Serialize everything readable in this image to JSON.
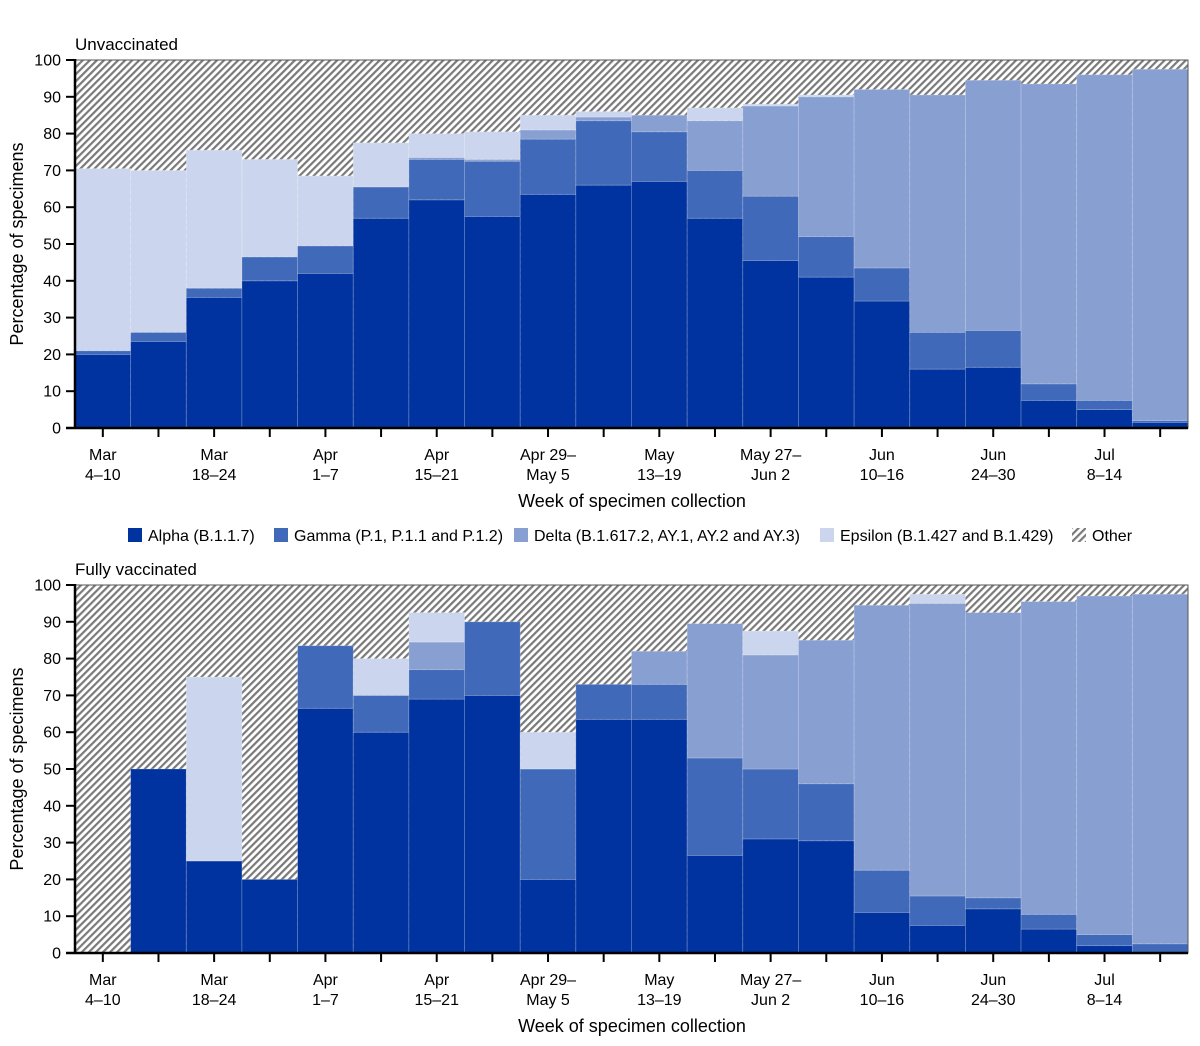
{
  "colors": {
    "alpha": "#0033a0",
    "gamma": "#4169b9",
    "delta": "#889fd2",
    "epsilon": "#cbd6ee",
    "other_hatch": "#7a7a7a"
  },
  "legend": {
    "placement": "between-panels",
    "items": [
      {
        "key": "alpha",
        "label": "Alpha (B.1.1.7)"
      },
      {
        "key": "gamma",
        "label": "Gamma (P.1, P.1.1 and P.1.2)"
      },
      {
        "key": "delta",
        "label": "Delta (B.1.617.2, AY.1, AY.2 and AY.3)"
      },
      {
        "key": "epsilon",
        "label": "Epsilon (B.1.427 and B.1.429)"
      },
      {
        "key": "other",
        "label": "Other"
      }
    ]
  },
  "chart_data": [
    {
      "type": "bar",
      "stacked": true,
      "title": "Unvaccinated",
      "xlabel": "Week of specimen collection",
      "ylabel": "Percentage of specimens",
      "ylim": [
        0,
        100
      ],
      "yticks": [
        0,
        10,
        20,
        30,
        40,
        50,
        60,
        70,
        80,
        90,
        100
      ],
      "categories": [
        [
          "Mar",
          "4–10"
        ],
        [
          "",
          ""
        ],
        [
          "Mar",
          "18–24"
        ],
        [
          "",
          ""
        ],
        [
          "Apr",
          "1–7"
        ],
        [
          "",
          ""
        ],
        [
          "Apr",
          "15–21"
        ],
        [
          "",
          ""
        ],
        [
          "Apr 29–",
          "May 5"
        ],
        [
          "",
          ""
        ],
        [
          "May",
          "13–19"
        ],
        [
          "",
          ""
        ],
        [
          "May 27–",
          "Jun 2"
        ],
        [
          "",
          ""
        ],
        [
          "Jun",
          "10–16"
        ],
        [
          "",
          ""
        ],
        [
          "Jun",
          "24–30"
        ],
        [
          "",
          ""
        ],
        [
          "Jul",
          "8–14"
        ],
        [
          "",
          ""
        ]
      ],
      "series": [
        {
          "name": "Alpha (B.1.1.7)",
          "key": "alpha",
          "values": [
            20,
            23.5,
            35.5,
            40,
            42,
            57,
            62,
            57.5,
            63.5,
            66,
            67,
            57,
            45.5,
            41,
            34.5,
            16,
            16.5,
            7.5,
            5,
            1.5
          ]
        },
        {
          "name": "Gamma (P.1, P.1.1 and P.1.2)",
          "key": "gamma",
          "values": [
            1,
            2.5,
            2.5,
            6.5,
            7.5,
            8.5,
            11,
            15,
            15,
            17.5,
            13.5,
            13,
            17.5,
            11,
            9,
            10,
            10,
            4.5,
            2.5,
            0.5
          ]
        },
        {
          "name": "Delta (B.1.617.2, AY.1, AY.2 and AY.3)",
          "key": "delta",
          "values": [
            0,
            0,
            0,
            0,
            0,
            0,
            0.5,
            0.5,
            2.5,
            1,
            4.5,
            13.5,
            24.5,
            38,
            48.5,
            64.5,
            68,
            81.5,
            88.5,
            95.5
          ]
        },
        {
          "name": "Epsilon (B.1.427 and B.1.429)",
          "key": "epsilon",
          "values": [
            49.5,
            44,
            37.5,
            26.5,
            19,
            12,
            6.5,
            7.5,
            4,
            1.5,
            0,
            3.5,
            0.5,
            0.5,
            0,
            0,
            0,
            0,
            0,
            0
          ]
        }
      ]
    },
    {
      "type": "bar",
      "stacked": true,
      "title": "Fully vaccinated",
      "xlabel": "Week of specimen collection",
      "ylabel": "Percentage of specimens",
      "ylim": [
        0,
        100
      ],
      "yticks": [
        0,
        10,
        20,
        30,
        40,
        50,
        60,
        70,
        80,
        90,
        100
      ],
      "categories": [
        [
          "Mar",
          "4–10"
        ],
        [
          "",
          ""
        ],
        [
          "Mar",
          "18–24"
        ],
        [
          "",
          ""
        ],
        [
          "Apr",
          "1–7"
        ],
        [
          "",
          ""
        ],
        [
          "Apr",
          "15–21"
        ],
        [
          "",
          ""
        ],
        [
          "Apr 29–",
          "May 5"
        ],
        [
          "",
          ""
        ],
        [
          "May",
          "13–19"
        ],
        [
          "",
          ""
        ],
        [
          "May 27–",
          "Jun 2"
        ],
        [
          "",
          ""
        ],
        [
          "Jun",
          "10–16"
        ],
        [
          "",
          ""
        ],
        [
          "Jun",
          "24–30"
        ],
        [
          "",
          ""
        ],
        [
          "Jul",
          "8–14"
        ],
        [
          "",
          ""
        ]
      ],
      "series": [
        {
          "name": "Alpha (B.1.1.7)",
          "key": "alpha",
          "values": [
            0,
            50,
            25,
            20,
            66.5,
            60,
            69,
            70,
            20,
            63.5,
            63.5,
            26.5,
            31,
            30.5,
            11,
            7.5,
            12,
            6.5,
            2,
            0
          ]
        },
        {
          "name": "Gamma (P.1, P.1.1 and P.1.2)",
          "key": "gamma",
          "values": [
            0,
            0,
            0,
            0,
            17,
            10,
            8,
            20,
            30,
            9.5,
            9.5,
            26.5,
            19,
            15.5,
            11.5,
            8,
            3,
            4,
            3,
            2.5
          ]
        },
        {
          "name": "Delta (B.1.617.2, AY.1, AY.2 and AY.3)",
          "key": "delta",
          "values": [
            0,
            0,
            0,
            0,
            0,
            0,
            7.5,
            0,
            0,
            0,
            9,
            36.5,
            31,
            39,
            72,
            79.5,
            77.5,
            85,
            92,
            95
          ]
        },
        {
          "name": "Epsilon (B.1.427 and B.1.429)",
          "key": "epsilon",
          "values": [
            0,
            0,
            50,
            0,
            0,
            10,
            8,
            0,
            10,
            0,
            0,
            0,
            6.5,
            0,
            0,
            2.5,
            0,
            0,
            0,
            0
          ]
        }
      ]
    }
  ]
}
